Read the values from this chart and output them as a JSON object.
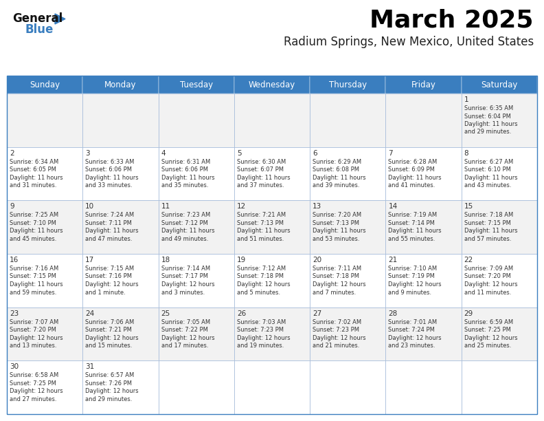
{
  "title": "March 2025",
  "subtitle": "Radium Springs, New Mexico, United States",
  "header_bg": "#3a7ebf",
  "header_text": "#ffffff",
  "day_headers": [
    "Sunday",
    "Monday",
    "Tuesday",
    "Wednesday",
    "Thursday",
    "Friday",
    "Saturday"
  ],
  "row0_bg": "#f2f2f2",
  "row1_bg": "#ffffff",
  "row2_bg": "#f2f2f2",
  "row3_bg": "#ffffff",
  "row4_bg": "#f2f2f2",
  "row5_bg": "#ffffff",
  "border_color": "#3a7ebf",
  "grid_line_color": "#a0b8d8",
  "title_color": "#000000",
  "subtitle_color": "#222222",
  "day_num_color": "#333333",
  "cell_text_color": "#333333",
  "logo_general_color": "#111111",
  "logo_blue_color": "#3a7ebf",
  "logo_triangle_color": "#3a7ebf",
  "calendar": [
    [
      null,
      null,
      null,
      null,
      null,
      null,
      {
        "day": "1",
        "sunrise": "6:35 AM",
        "sunset": "6:04 PM",
        "daylight": "11 hours and 29 minutes."
      }
    ],
    [
      {
        "day": "2",
        "sunrise": "6:34 AM",
        "sunset": "6:05 PM",
        "daylight": "11 hours and 31 minutes."
      },
      {
        "day": "3",
        "sunrise": "6:33 AM",
        "sunset": "6:06 PM",
        "daylight": "11 hours and 33 minutes."
      },
      {
        "day": "4",
        "sunrise": "6:31 AM",
        "sunset": "6:06 PM",
        "daylight": "11 hours and 35 minutes."
      },
      {
        "day": "5",
        "sunrise": "6:30 AM",
        "sunset": "6:07 PM",
        "daylight": "11 hours and 37 minutes."
      },
      {
        "day": "6",
        "sunrise": "6:29 AM",
        "sunset": "6:08 PM",
        "daylight": "11 hours and 39 minutes."
      },
      {
        "day": "7",
        "sunrise": "6:28 AM",
        "sunset": "6:09 PM",
        "daylight": "11 hours and 41 minutes."
      },
      {
        "day": "8",
        "sunrise": "6:27 AM",
        "sunset": "6:10 PM",
        "daylight": "11 hours and 43 minutes."
      }
    ],
    [
      {
        "day": "9",
        "sunrise": "7:25 AM",
        "sunset": "7:10 PM",
        "daylight": "11 hours and 45 minutes."
      },
      {
        "day": "10",
        "sunrise": "7:24 AM",
        "sunset": "7:11 PM",
        "daylight": "11 hours and 47 minutes."
      },
      {
        "day": "11",
        "sunrise": "7:23 AM",
        "sunset": "7:12 PM",
        "daylight": "11 hours and 49 minutes."
      },
      {
        "day": "12",
        "sunrise": "7:21 AM",
        "sunset": "7:13 PM",
        "daylight": "11 hours and 51 minutes."
      },
      {
        "day": "13",
        "sunrise": "7:20 AM",
        "sunset": "7:13 PM",
        "daylight": "11 hours and 53 minutes."
      },
      {
        "day": "14",
        "sunrise": "7:19 AM",
        "sunset": "7:14 PM",
        "daylight": "11 hours and 55 minutes."
      },
      {
        "day": "15",
        "sunrise": "7:18 AM",
        "sunset": "7:15 PM",
        "daylight": "11 hours and 57 minutes."
      }
    ],
    [
      {
        "day": "16",
        "sunrise": "7:16 AM",
        "sunset": "7:15 PM",
        "daylight": "11 hours and 59 minutes."
      },
      {
        "day": "17",
        "sunrise": "7:15 AM",
        "sunset": "7:16 PM",
        "daylight": "12 hours and 1 minute."
      },
      {
        "day": "18",
        "sunrise": "7:14 AM",
        "sunset": "7:17 PM",
        "daylight": "12 hours and 3 minutes."
      },
      {
        "day": "19",
        "sunrise": "7:12 AM",
        "sunset": "7:18 PM",
        "daylight": "12 hours and 5 minutes."
      },
      {
        "day": "20",
        "sunrise": "7:11 AM",
        "sunset": "7:18 PM",
        "daylight": "12 hours and 7 minutes."
      },
      {
        "day": "21",
        "sunrise": "7:10 AM",
        "sunset": "7:19 PM",
        "daylight": "12 hours and 9 minutes."
      },
      {
        "day": "22",
        "sunrise": "7:09 AM",
        "sunset": "7:20 PM",
        "daylight": "12 hours and 11 minutes."
      }
    ],
    [
      {
        "day": "23",
        "sunrise": "7:07 AM",
        "sunset": "7:20 PM",
        "daylight": "12 hours and 13 minutes."
      },
      {
        "day": "24",
        "sunrise": "7:06 AM",
        "sunset": "7:21 PM",
        "daylight": "12 hours and 15 minutes."
      },
      {
        "day": "25",
        "sunrise": "7:05 AM",
        "sunset": "7:22 PM",
        "daylight": "12 hours and 17 minutes."
      },
      {
        "day": "26",
        "sunrise": "7:03 AM",
        "sunset": "7:23 PM",
        "daylight": "12 hours and 19 minutes."
      },
      {
        "day": "27",
        "sunrise": "7:02 AM",
        "sunset": "7:23 PM",
        "daylight": "12 hours and 21 minutes."
      },
      {
        "day": "28",
        "sunrise": "7:01 AM",
        "sunset": "7:24 PM",
        "daylight": "12 hours and 23 minutes."
      },
      {
        "day": "29",
        "sunrise": "6:59 AM",
        "sunset": "7:25 PM",
        "daylight": "12 hours and 25 minutes."
      }
    ],
    [
      {
        "day": "30",
        "sunrise": "6:58 AM",
        "sunset": "7:25 PM",
        "daylight": "12 hours and 27 minutes."
      },
      {
        "day": "31",
        "sunrise": "6:57 AM",
        "sunset": "7:26 PM",
        "daylight": "12 hours and 29 minutes."
      },
      null,
      null,
      null,
      null,
      null
    ]
  ]
}
